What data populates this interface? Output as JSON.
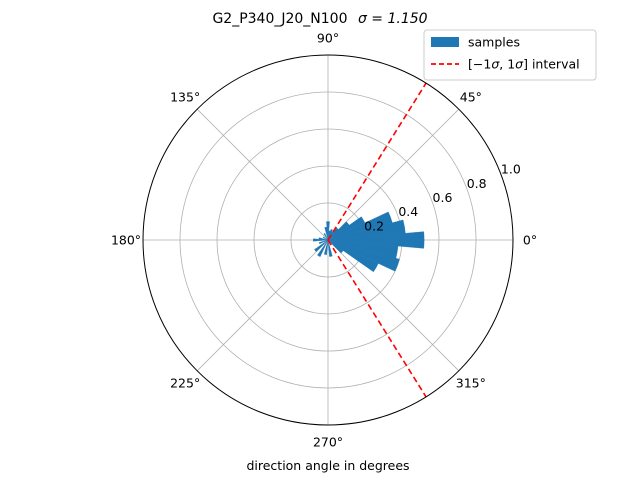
{
  "figure": {
    "title": "G2_P340_J20_N100",
    "title_math": "σ = 1.150",
    "xlabel": "direction angle in degrees"
  },
  "legend": {
    "samples_label": "samples",
    "interval_label_prefix": "[−1",
    "interval_label_sigma1": "σ",
    "interval_label_mid": ", 1",
    "interval_label_sigma2": "σ",
    "interval_label_suffix": "] interval"
  },
  "colors": {
    "bars": "#1f77b4",
    "interval_line": "#ff0000",
    "grid": "#b0b0b0"
  },
  "chart_data": {
    "type": "bar",
    "projection": "polar",
    "title": "G2_P340_J20_N100 σ = 1.150",
    "xlabel": "direction angle in degrees",
    "theta_tick_labels": [
      "0°",
      "45°",
      "90°",
      "135°",
      "180°",
      "225°",
      "270°",
      "315°"
    ],
    "theta_ticks_deg": [
      0,
      45,
      90,
      135,
      180,
      225,
      270,
      315
    ],
    "r_tick_labels": [
      "0.2",
      "0.4",
      "0.6",
      "0.8",
      "1.0"
    ],
    "r_ticks": [
      0.2,
      0.4,
      0.6,
      0.8,
      1.0
    ],
    "r_label_angle_deg": 22.5,
    "rlim": [
      0,
      1.0
    ],
    "grid": true,
    "legend_placement": "top-right",
    "bar_width_deg": 10,
    "series": [
      {
        "name": "samples",
        "theta_deg": [
          -40,
          -30,
          -20,
          -10,
          0,
          10,
          20,
          30,
          40,
          50,
          60,
          70,
          80,
          90,
          100,
          120,
          150,
          170,
          180,
          200,
          220,
          240,
          260,
          280
        ],
        "r": [
          0.1,
          0.3,
          0.4,
          0.38,
          0.52,
          0.42,
          0.36,
          0.22,
          0.14,
          0.08,
          0.05,
          0.06,
          0.05,
          0.1,
          0.07,
          0.04,
          0.03,
          0.05,
          0.08,
          0.05,
          0.09,
          0.1,
          0.08,
          0.09
        ]
      },
      {
        "name": "[−1σ, 1σ] interval",
        "style": "dashed",
        "theta_deg": [
          58,
          -58
        ],
        "r": [
          1.0,
          1.0
        ]
      }
    ]
  }
}
